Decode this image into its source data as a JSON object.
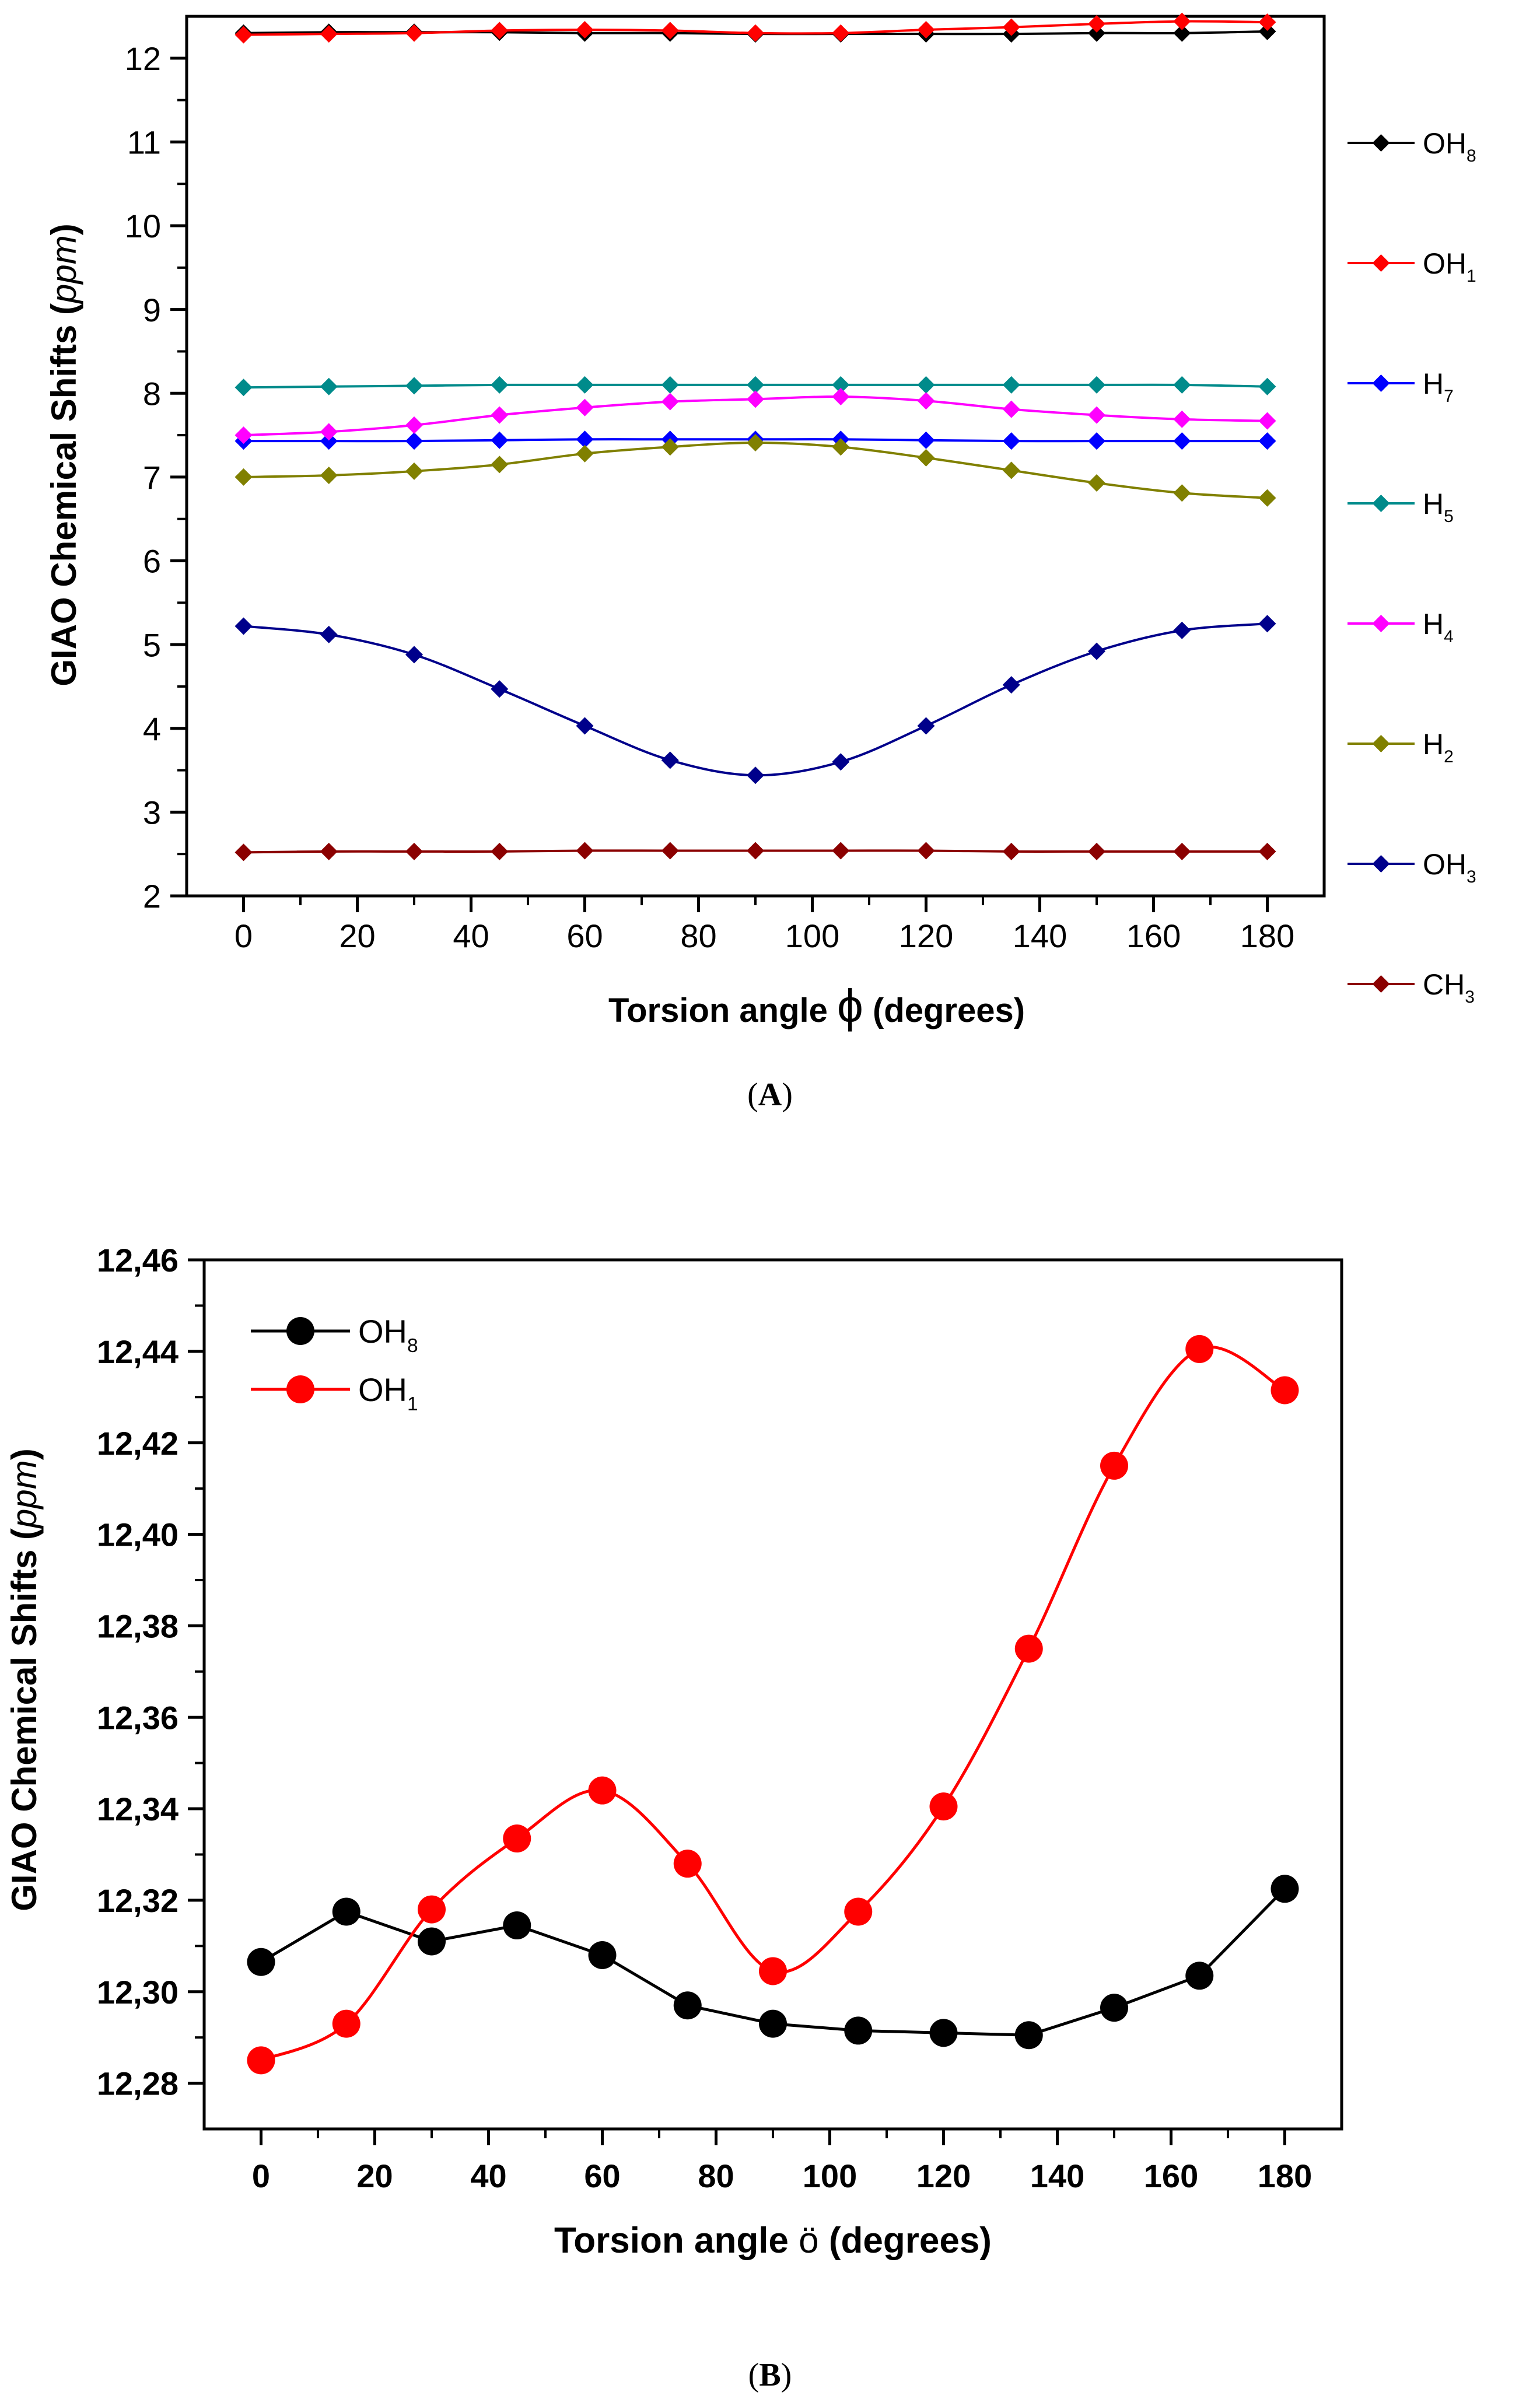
{
  "figure": {
    "label_a": "A",
    "label_b": "B"
  },
  "chart_data": [
    {
      "type": "line",
      "panel": "A",
      "xlabel_prefix": "Torsion angle ",
      "xlabel_symbol": "ϕ",
      "xlabel_suffix": " (degrees)",
      "ylabel_prefix": "GIAO Chemical Shifts (",
      "ylabel_unit": "ppm",
      "ylabel_suffix": ")",
      "xlim": [
        -10,
        190
      ],
      "ylim": [
        2,
        12.5
      ],
      "xticks": [
        0,
        20,
        40,
        60,
        80,
        100,
        120,
        140,
        160,
        180
      ],
      "yticks": [
        2,
        3,
        4,
        5,
        6,
        7,
        8,
        9,
        10,
        11,
        12
      ],
      "x": [
        0,
        15,
        30,
        45,
        60,
        75,
        90,
        105,
        120,
        135,
        150,
        165,
        180
      ],
      "legend_position": "right",
      "series": [
        {
          "name": "OH",
          "sub": "8",
          "color": "#000000",
          "values": [
            12.3,
            12.31,
            12.31,
            12.31,
            12.3,
            12.3,
            12.29,
            12.29,
            12.29,
            12.29,
            12.3,
            12.3,
            12.32
          ]
        },
        {
          "name": "OH",
          "sub": "1",
          "color": "#ff0000",
          "values": [
            12.28,
            12.29,
            12.3,
            12.33,
            12.34,
            12.33,
            12.3,
            12.3,
            12.34,
            12.37,
            12.41,
            12.44,
            12.43
          ]
        },
        {
          "name": "H",
          "sub": "7",
          "color": "#0000ff",
          "values": [
            7.43,
            7.43,
            7.43,
            7.44,
            7.45,
            7.45,
            7.45,
            7.45,
            7.44,
            7.43,
            7.43,
            7.43,
            7.43
          ]
        },
        {
          "name": "H",
          "sub": "5",
          "color": "#008b8b",
          "values": [
            8.07,
            8.08,
            8.09,
            8.1,
            8.1,
            8.1,
            8.1,
            8.1,
            8.1,
            8.1,
            8.1,
            8.1,
            8.08
          ]
        },
        {
          "name": "H",
          "sub": "4",
          "color": "#ff00ff",
          "values": [
            7.5,
            7.54,
            7.62,
            7.74,
            7.83,
            7.9,
            7.93,
            7.96,
            7.91,
            7.81,
            7.74,
            7.69,
            7.67
          ]
        },
        {
          "name": "H",
          "sub": "2",
          "color": "#808000",
          "values": [
            7.0,
            7.02,
            7.07,
            7.15,
            7.28,
            7.36,
            7.41,
            7.36,
            7.23,
            7.08,
            6.93,
            6.81,
            6.75
          ]
        },
        {
          "name": "OH",
          "sub": "3",
          "color": "#00008b",
          "values": [
            5.22,
            5.12,
            4.88,
            4.47,
            4.03,
            3.62,
            3.44,
            3.6,
            4.03,
            4.52,
            4.92,
            5.17,
            5.25
          ]
        },
        {
          "name": "CH",
          "sub": "3",
          "color": "#8b0000",
          "values": [
            2.52,
            2.53,
            2.53,
            2.53,
            2.54,
            2.54,
            2.54,
            2.54,
            2.54,
            2.53,
            2.53,
            2.53,
            2.53
          ]
        }
      ]
    },
    {
      "type": "line",
      "panel": "B",
      "xlabel_prefix": "Torsion angle ",
      "xlabel_symbol": "ö",
      "xlabel_suffix": " (degrees)",
      "ylabel_prefix": "GIAO Chemical Shifts (",
      "ylabel_unit": "ppm",
      "ylabel_suffix": ")",
      "xlim": [
        -10,
        190
      ],
      "ylim": [
        12.27,
        12.46
      ],
      "xticks": [
        0,
        20,
        40,
        60,
        80,
        100,
        120,
        140,
        160,
        180
      ],
      "yticks": [
        "12,28",
        "12,30",
        "12,32",
        "12,34",
        "12,36",
        "12,38",
        "12,40",
        "12,42",
        "12,44",
        "12,46"
      ],
      "ytick_values": [
        12.28,
        12.3,
        12.32,
        12.34,
        12.36,
        12.38,
        12.4,
        12.42,
        12.44,
        12.46
      ],
      "x": [
        0,
        15,
        30,
        45,
        60,
        75,
        90,
        105,
        120,
        135,
        150,
        165,
        180
      ],
      "legend_position": "top-left",
      "series": [
        {
          "name": "OH",
          "sub": "8",
          "color": "#000000",
          "values": [
            12.3065,
            12.3175,
            12.311,
            12.3145,
            12.308,
            12.297,
            12.293,
            12.2915,
            12.291,
            12.2905,
            12.2965,
            12.3035,
            12.3225
          ]
        },
        {
          "name": "OH",
          "sub": "1",
          "color": "#ff0000",
          "values": [
            12.285,
            12.293,
            12.318,
            12.3335,
            12.344,
            12.328,
            12.3045,
            12.3175,
            12.3405,
            12.375,
            12.415,
            12.4405,
            12.4315
          ]
        }
      ]
    }
  ]
}
